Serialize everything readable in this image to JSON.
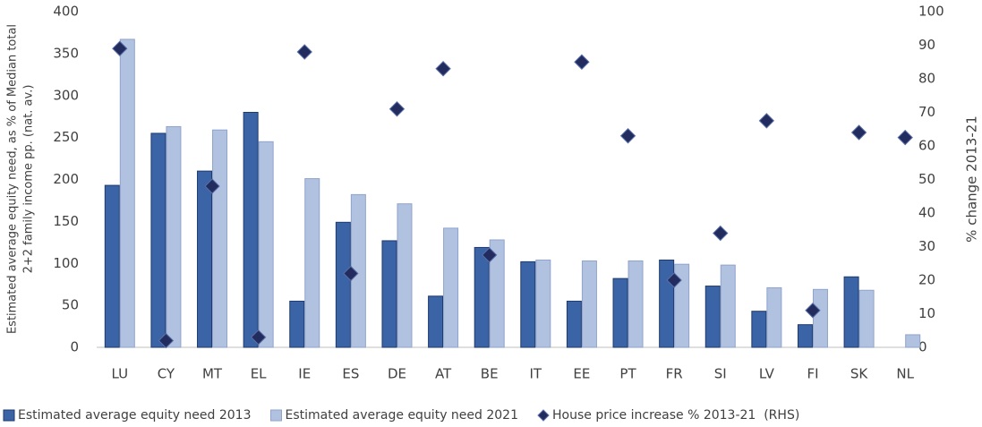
{
  "chart_data": {
    "type": "bar",
    "categories": [
      "LU",
      "CY",
      "MT",
      "EL",
      "IE",
      "ES",
      "DE",
      "AT",
      "BE",
      "IT",
      "EE",
      "PT",
      "FR",
      "SI",
      "LV",
      "FI",
      "SK",
      "NL"
    ],
    "series": [
      {
        "name": "Estimated average equity need 2013",
        "color": "#3a64a6",
        "values": [
          193,
          255,
          210,
          280,
          55,
          149,
          127,
          61,
          119,
          102,
          55,
          82,
          104,
          73,
          43,
          27,
          84,
          null
        ]
      },
      {
        "name": "Estimated average equity need 2021",
        "color": "#b1c2e1",
        "values": [
          367,
          263,
          259,
          245,
          201,
          182,
          171,
          142,
          128,
          104,
          103,
          103,
          99,
          98,
          71,
          69,
          68,
          15
        ]
      },
      {
        "name": "House price increase % 2013-21  (RHS)",
        "type": "scatter",
        "axis": "y2",
        "color": "#222c5e",
        "values": [
          89,
          2,
          48,
          3,
          88,
          22,
          71,
          83,
          27.5,
          null,
          85,
          63,
          20,
          34,
          67.5,
          11,
          64,
          62.5
        ]
      }
    ],
    "ylabel": [
      "Estimated average equity need, as % of Median total",
      "2+2 family income pp. (nat. av.)"
    ],
    "y2label": "% change 2013-21",
    "ylim": [
      0,
      400
    ],
    "yticks": [
      0,
      50,
      100,
      150,
      200,
      250,
      300,
      350,
      400
    ],
    "y2lim": [
      0,
      100
    ],
    "y2ticks": [
      0,
      10,
      20,
      30,
      40,
      50,
      60,
      70,
      80,
      90,
      100
    ]
  }
}
